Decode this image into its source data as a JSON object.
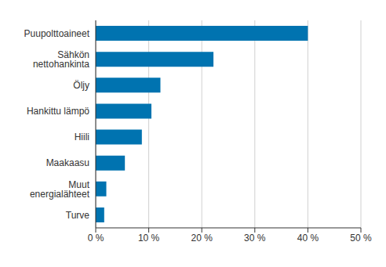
{
  "chart_data": {
    "type": "bar",
    "orientation": "horizontal",
    "categories": [
      "Puupolttoaineet",
      "Sähkön nettohankinta",
      "Öljy",
      "Hankittu lämpö",
      "Hiili",
      "Maakaasu",
      "Muut energialähteet",
      "Turve"
    ],
    "values": [
      40.0,
      22.2,
      12.2,
      10.5,
      8.7,
      5.5,
      2.0,
      1.6
    ],
    "color": "#0073b0",
    "xlim": [
      0,
      50
    ],
    "xticks": [
      {
        "value": 0,
        "label": "0 %"
      },
      {
        "value": 10,
        "label": "10 %"
      },
      {
        "value": 20,
        "label": "20 %"
      },
      {
        "value": 30,
        "label": "30 %"
      },
      {
        "value": 40,
        "label": "40 %"
      },
      {
        "value": 50,
        "label": "50 %"
      }
    ],
    "grid": true
  }
}
